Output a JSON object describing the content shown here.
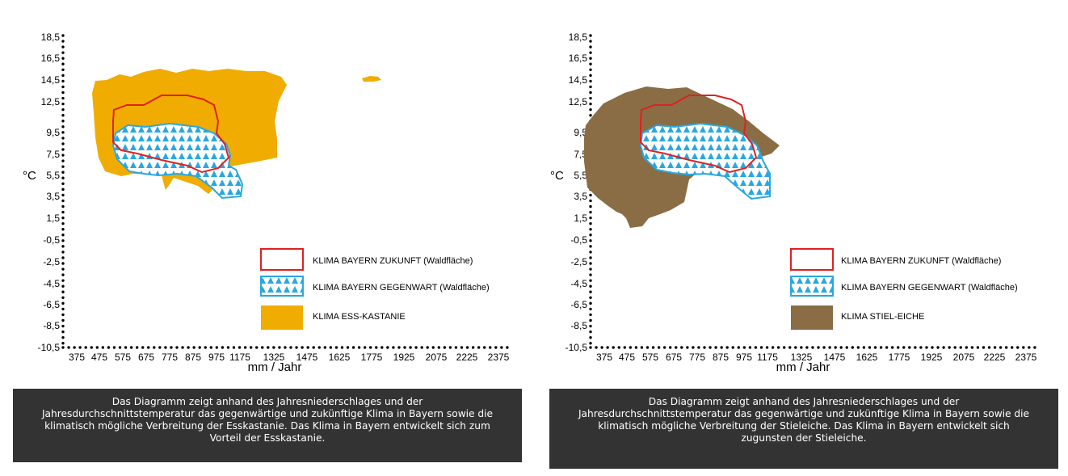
{
  "chart_data": [
    {
      "type": "area",
      "ylabel": "°C",
      "xlabel": "mm / Jahr",
      "y_ticks": [
        "18,5",
        "16,5",
        "14,5",
        "12,5",
        "9,5",
        "7,5",
        "5,5",
        "3,5",
        "1,5",
        "-0,5",
        "-2,5",
        "-4,5",
        "-6,5",
        "-8,5",
        "-10,5"
      ],
      "x_ticks": [
        "375",
        "475",
        "575",
        "675",
        "775",
        "875",
        "975",
        "1175",
        "1325",
        "1475",
        "1625",
        "1775",
        "1925",
        "2075",
        "2225",
        "2375"
      ],
      "legend": [
        {
          "label": "KLIMA BAYERN ZUKUNFT (Waldfläche)",
          "style": "outline",
          "color": "#e02020"
        },
        {
          "label": "KLIMA BAYERN GEGENWART (Waldfläche)",
          "style": "triangles",
          "color": "#29a8e0"
        },
        {
          "label": "KLIMA ESS-KASTANIE",
          "style": "fill",
          "color": "#f0ac00"
        }
      ],
      "caption": "Das Diagramm zeigt anhand des Jahresniederschlages und der Jahresdurchschnittstemperatur das gegenwärtige und zukünftige Klima in Bayern sowie die klimatisch mögliche Verbreitung der Esskastanie. Das Klima in Bayern entwickelt sich zum Vorteil der Esskastanie.",
      "caption_lines": [
        "Das Diagramm zeigt anhand des Jahresniederschlages und der",
        "Jahresdurchschnittstemperatur das gegenwärtige und zukünftige Klima in Bayern sowie die",
        "klimatisch mögliche Verbreitung der Esskastanie. Das Klima in Bayern entwickelt sich zum",
        "Vorteil der Esskastanie."
      ]
    },
    {
      "type": "area",
      "ylabel": "°C",
      "xlabel": "mm / Jahr",
      "y_ticks": [
        "18,5",
        "16,5",
        "14,5",
        "12,5",
        "9,5",
        "7,5",
        "5,5",
        "3,5",
        "1,5",
        "-0,5",
        "-2,5",
        "-4,5",
        "-6,5",
        "-8,5",
        "-10,5"
      ],
      "x_ticks": [
        "375",
        "475",
        "575",
        "675",
        "775",
        "875",
        "975",
        "1175",
        "1325",
        "1475",
        "1625",
        "1775",
        "1925",
        "2075",
        "2225",
        "2375"
      ],
      "legend": [
        {
          "label": "KLIMA BAYERN ZUKUNFT (Waldfläche)",
          "style": "outline",
          "color": "#e02020"
        },
        {
          "label": "KLIMA BAYERN GEGENWART (Waldfläche)",
          "style": "triangles",
          "color": "#29a8e0"
        },
        {
          "label": "KLIMA STIEL-EICHE",
          "style": "fill",
          "color": "#8a6d45"
        }
      ],
      "caption": "Das Diagramm zeigt anhand des Jahresniederschlages und der Jahresdurchschnittstemperatur das gegenwärtige und zukünftige Klima in Bayern sowie die klimatisch mögliche Verbreitung der Stieleiche. Das Klima in Bayern entwickelt sich zugunsten der Stieleiche.",
      "caption_lines": [
        "Das Diagramm zeigt anhand des Jahresniederschlages und der",
        "Jahresdurchschnittstemperatur das gegenwärtige und zukünftige Klima in Bayern sowie die",
        "klimatisch mögliche Verbreitung der Stieleiche. Das Klima in Bayern entwickelt sich",
        "zugunsten der Stieleiche."
      ]
    }
  ]
}
